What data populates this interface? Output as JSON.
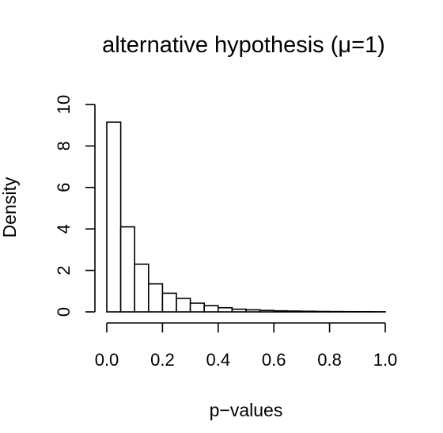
{
  "chart_data": {
    "type": "bar",
    "title": "alternative hypothesis (μ=1)",
    "xlabel": "p−values",
    "ylabel": "Density",
    "x_ticks": [
      "0.0",
      "0.2",
      "0.4",
      "0.6",
      "0.8",
      "1.0"
    ],
    "y_ticks": [
      "0",
      "2",
      "4",
      "6",
      "8",
      "10"
    ],
    "xlim": [
      0,
      1
    ],
    "ylim": [
      0,
      10
    ],
    "bin_width": 0.05,
    "bin_edges": [
      0.0,
      0.05,
      0.1,
      0.15,
      0.2,
      0.25,
      0.3,
      0.35,
      0.4,
      0.45,
      0.5,
      0.55,
      0.6,
      0.65,
      0.7,
      0.75,
      0.8,
      0.85,
      0.9,
      0.95,
      1.0
    ],
    "values": [
      9.15,
      4.1,
      2.3,
      1.35,
      0.9,
      0.65,
      0.42,
      0.3,
      0.2,
      0.13,
      0.1,
      0.07,
      0.05,
      0.04,
      0.03,
      0.02,
      0.015,
      0.01,
      0.008,
      0.005
    ],
    "grid": false,
    "legend": "none"
  }
}
